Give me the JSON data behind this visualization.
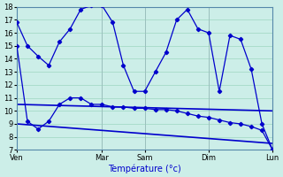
{
  "xlabel": "Température (°c)",
  "background_color": "#cceee8",
  "grid_color": "#aaddcc",
  "line_color": "#0000cc",
  "tick_labels": [
    "Ven",
    "Mar",
    "Sam",
    "Dim",
    "Lun"
  ],
  "tick_positions": [
    0,
    8,
    12,
    18,
    24
  ],
  "xlim": [
    0,
    24
  ],
  "ylim": [
    7,
    18
  ],
  "yticks": [
    7,
    8,
    9,
    10,
    11,
    12,
    13,
    14,
    15,
    16,
    17,
    18
  ],
  "series_top": {
    "x": [
      0,
      1,
      2,
      3,
      4,
      5,
      6,
      7,
      8,
      9,
      10,
      11,
      12,
      13,
      14,
      15,
      16,
      17,
      18,
      19,
      20,
      21,
      22,
      23,
      24
    ],
    "y": [
      16.8,
      15.0,
      14.2,
      13.5,
      15.3,
      16.3,
      17.8,
      18.1,
      18.1,
      16.8,
      13.5,
      11.5,
      11.5,
      13.0,
      14.5,
      17.0,
      17.8,
      16.3,
      16.0,
      11.5,
      15.8,
      15.5,
      13.2,
      9.0,
      7.0
    ]
  },
  "series_mid": {
    "x": [
      0,
      1,
      2,
      3,
      4,
      5,
      6,
      7,
      8,
      9,
      10,
      11,
      12,
      13,
      14,
      15,
      16,
      17,
      18,
      19,
      20,
      21,
      22,
      23,
      24
    ],
    "y": [
      15.0,
      9.2,
      8.6,
      9.2,
      10.5,
      11.0,
      11.0,
      10.5,
      10.5,
      10.3,
      10.3,
      10.2,
      10.2,
      10.1,
      10.1,
      10.0,
      9.8,
      9.6,
      9.5,
      9.3,
      9.1,
      9.0,
      8.8,
      8.5,
      7.0
    ]
  },
  "series_flat1": {
    "x": [
      0,
      24
    ],
    "y": [
      10.5,
      10.0
    ]
  },
  "series_flat2": {
    "x": [
      0,
      24
    ],
    "y": [
      9.0,
      7.5
    ]
  }
}
